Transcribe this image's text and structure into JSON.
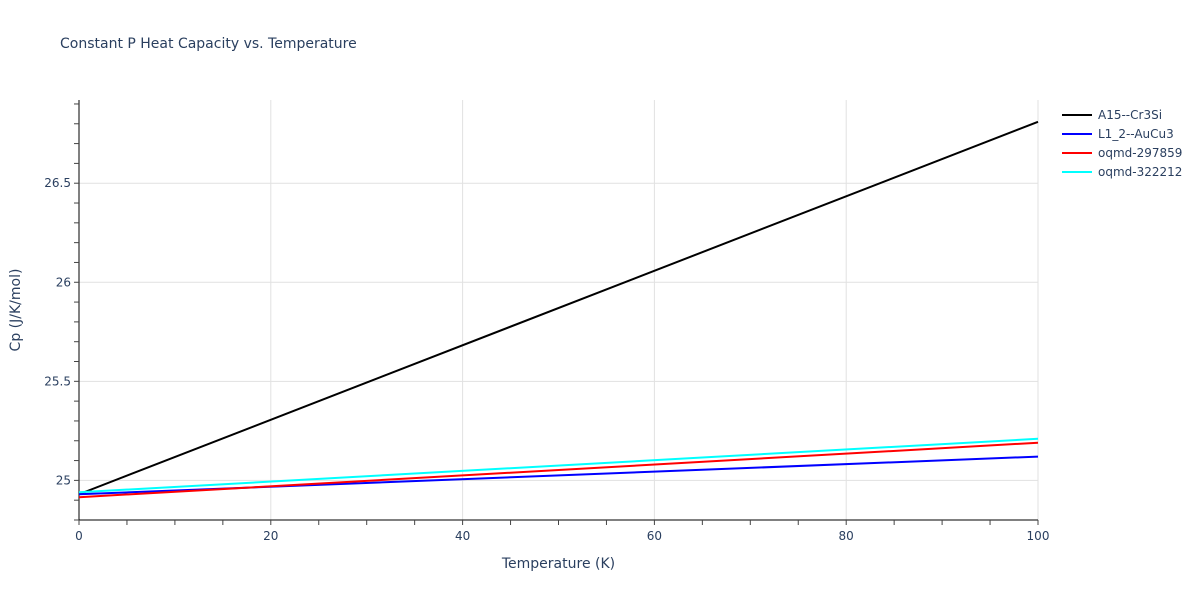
{
  "chart_data": {
    "type": "line",
    "title": "Constant P Heat Capacity vs. Temperature",
    "xlabel": "Temperature (K)",
    "ylabel": "Cp (J/K/mol)",
    "xlim": [
      0,
      100
    ],
    "ylim": [
      24.8,
      26.92
    ],
    "x_ticks": [
      0,
      20,
      40,
      60,
      80,
      100
    ],
    "x_tick_labels": [
      "0",
      "20",
      "40",
      "60",
      "80",
      "100"
    ],
    "y_ticks": [
      25,
      25.5,
      26,
      26.5
    ],
    "y_tick_labels": [
      "25",
      "25.5",
      "26",
      "26.5"
    ],
    "grid": true,
    "legend_position": "right",
    "x": [
      0,
      100
    ],
    "series": [
      {
        "name": "A15--Cr3Si",
        "color": "#000000",
        "x": [
          0,
          100
        ],
        "values": [
          24.93,
          26.81
        ]
      },
      {
        "name": "L1_2--AuCu3",
        "color": "#0000ff",
        "x": [
          0,
          100
        ],
        "values": [
          24.93,
          25.12
        ]
      },
      {
        "name": "oqmd-297859",
        "color": "#ff0000",
        "x": [
          0,
          100
        ],
        "values": [
          24.915,
          25.19
        ]
      },
      {
        "name": "oqmd-322212",
        "color": "#00ffff",
        "x": [
          0,
          100
        ],
        "values": [
          24.94,
          25.21
        ]
      }
    ]
  }
}
